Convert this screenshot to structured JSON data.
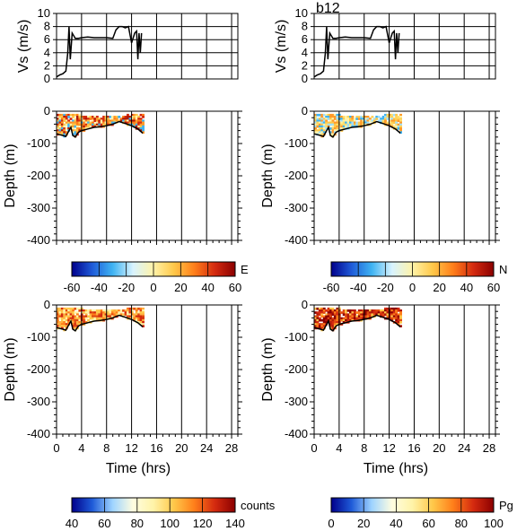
{
  "chart_data": {
    "type": "line",
    "panel_title": "b12",
    "speed_panels": {
      "ylabel": "Vs (m/s)",
      "ylim": [
        0,
        10
      ],
      "yticks": [
        0,
        2,
        4,
        6,
        8,
        10
      ],
      "xlim": [
        0,
        29
      ],
      "series": [
        {
          "x": [
            0,
            0.5,
            1.0,
            1.5,
            1.8,
            2.0,
            2.2,
            2.5,
            3.0,
            3.5,
            4,
            5,
            6,
            7,
            8,
            9,
            9.5,
            10,
            10.5,
            11,
            11.5,
            12,
            12.5,
            12.8,
            13,
            13.2,
            13.4,
            13.6
          ],
          "y": [
            0.3,
            0.6,
            0.8,
            1.2,
            4.0,
            8.0,
            3.0,
            7.0,
            6.2,
            6.2,
            6.3,
            6.4,
            6.3,
            6.3,
            6.3,
            6.2,
            7.5,
            8.0,
            8.0,
            7.8,
            8.0,
            5.5,
            7.0,
            7.3,
            3.0,
            7.0,
            4.0,
            7.0
          ]
        }
      ]
    },
    "depth_panels": {
      "ylabel": "Depth (m)",
      "ylim": [
        -400,
        0
      ],
      "yticks": [
        0,
        -100,
        -200,
        -300,
        -400
      ],
      "xlim": [
        0,
        29
      ],
      "xticks": [
        0,
        4,
        8,
        12,
        16,
        20,
        24,
        28
      ],
      "xlabel": "Time (hrs)",
      "bottom_line": {
        "x": [
          0,
          1,
          1.5,
          2,
          2.3,
          2.6,
          3,
          3.5,
          4,
          5,
          6,
          7,
          8,
          9,
          10,
          11,
          12,
          13,
          13.8
        ],
        "y": [
          -70,
          -75,
          -78,
          -60,
          -50,
          -75,
          -80,
          -65,
          -60,
          -55,
          -50,
          -48,
          -45,
          -40,
          -32,
          -38,
          -45,
          -55,
          -68
        ]
      }
    },
    "colorbars": [
      {
        "label": "E",
        "ticks": [
          "-60",
          "-40",
          "-20",
          "0",
          "20",
          "40",
          "60"
        ],
        "range": [
          -60,
          60
        ],
        "colors": [
          "#00008b",
          "#1f5bd8",
          "#3fb3f2",
          "#d8f3ff",
          "#fff3a8",
          "#ffc84a",
          "#ff7f1a",
          "#d42a0f",
          "#8b0000"
        ]
      },
      {
        "label": "N",
        "ticks": [
          "-60",
          "-40",
          "-20",
          "0",
          "20",
          "40",
          "60"
        ],
        "range": [
          -60,
          60
        ],
        "colors": [
          "#00008b",
          "#1f5bd8",
          "#3fb3f2",
          "#d8f3ff",
          "#fff3a8",
          "#ffc84a",
          "#ff7f1a",
          "#d42a0f",
          "#8b0000"
        ]
      },
      {
        "label": "counts",
        "ticks": [
          "40",
          "60",
          "80",
          "100",
          "120",
          "140"
        ],
        "range": [
          40,
          140
        ],
        "colors": [
          "#00008b",
          "#1f5bd8",
          "#9fd4ff",
          "#fffde0",
          "#fff3a8",
          "#ffc84a",
          "#ff7f1a",
          "#d42a0f",
          "#8b0000"
        ]
      },
      {
        "label": "Pg",
        "ticks": [
          "0",
          "20",
          "40",
          "60",
          "80",
          "100"
        ],
        "range": [
          0,
          100
        ],
        "colors": [
          "#00008b",
          "#1f5bd8",
          "#9fd4ff",
          "#fffde0",
          "#fff3a8",
          "#ffc84a",
          "#ff7f1a",
          "#d42a0f",
          "#8b0000"
        ]
      }
    ],
    "heat_fields": [
      {
        "name": "E",
        "colors": [
          "#d42a0f",
          "#ff7f1a",
          "#ffc84a",
          "#fff3a8",
          "#3fb3f2",
          "#ff9a2a",
          "#b01808"
        ]
      },
      {
        "name": "N",
        "colors": [
          "#ffe070",
          "#ffc84a",
          "#fff3a8",
          "#3fb3f2",
          "#9fe0ff",
          "#ff9a2a",
          "#ffd25a"
        ]
      },
      {
        "name": "counts",
        "colors": [
          "#ff7f1a",
          "#ffc84a",
          "#d42a0f",
          "#fff3a8",
          "#ffb040",
          "#e04a12"
        ]
      },
      {
        "name": "Pg",
        "colors": [
          "#d42a0f",
          "#ff7f1a",
          "#b01808",
          "#ffc84a",
          "#e04a12",
          "#8b0000"
        ]
      }
    ]
  }
}
